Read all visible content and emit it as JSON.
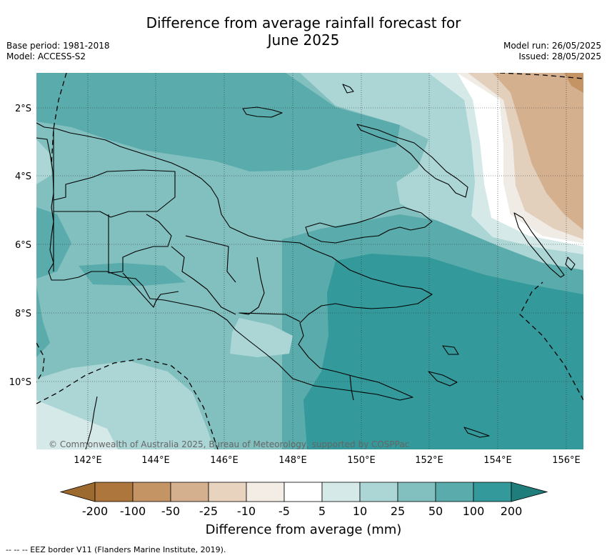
{
  "title_line1": "Difference from average rainfall forecast for",
  "title_line2": "June 2025",
  "base_period": "Base period: 1981-2018",
  "model": "Model: ACCESS-S2",
  "model_run": "Model run: 26/05/2025",
  "issued": "Issued: 28/05/2025",
  "credit": "© Commonwealth of Australia 2025, Bureau of Meteorology, supported by COSPPac",
  "lat_labels": [
    "2°S",
    "4°S",
    "6°S",
    "8°S",
    "10°S"
  ],
  "lon_labels": [
    "142°E",
    "144°E",
    "146°E",
    "148°E",
    "150°E",
    "152°E",
    "154°E",
    "156°E"
  ],
  "colorbar": {
    "title": "Difference from average (mm)",
    "tick_labels": [
      "-200",
      "-100",
      "-50",
      "-25",
      "-10",
      "-5",
      "5",
      "10",
      "25",
      "50",
      "100",
      "200"
    ],
    "colors": [
      "#9c6a2e",
      "#ad763c",
      "#c59464",
      "#d4b08e",
      "#e8d3bf",
      "#f3ede6",
      "#ffffff",
      "#d5e9e8",
      "#acd6d6",
      "#82bfbf",
      "#5aabab",
      "#33999a",
      "#1f7d7c"
    ]
  },
  "footnote": "--  --  -- EEZ border V11 (Flanders Marine Institute, 2019).",
  "zone_colors": {
    "drier_light": "#f0ebe4",
    "drier_mid": "#e3d0bc",
    "drier_strong": "#d4b08e",
    "wet_5_10": "#d5e9e8",
    "wet_10_25": "#acd6d6",
    "wet_25_50": "#82bfbf",
    "wet_50_100": "#5aabab",
    "wet_100_200": "#33999a"
  }
}
